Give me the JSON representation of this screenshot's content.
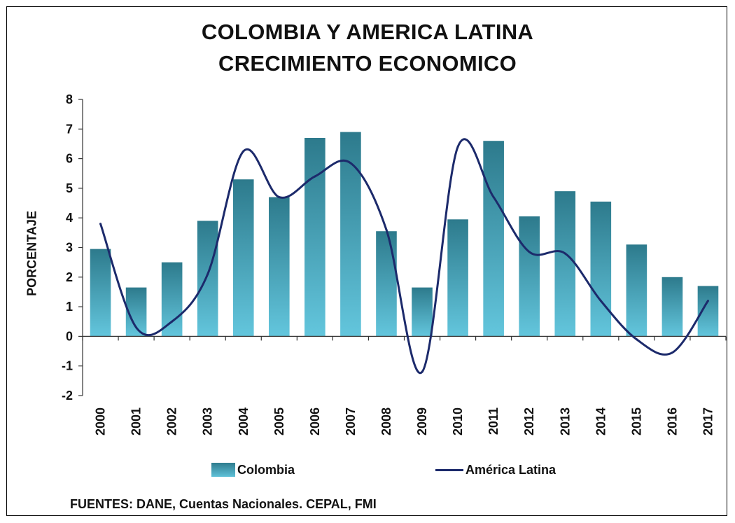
{
  "chart_data": {
    "type": "bar",
    "title": "COLOMBIA Y AMERICA LATINA",
    "subtitle": "CRECIMIENTO ECONOMICO",
    "ylabel": "PORCENTAJE",
    "xlabel": "",
    "ylim": [
      -2,
      8
    ],
    "yticks": [
      "8",
      "7",
      "6",
      "5",
      "4",
      "3",
      "2",
      "1",
      "0",
      "-1",
      "-2"
    ],
    "categories": [
      "2000",
      "2001",
      "2002",
      "2003",
      "2004",
      "2005",
      "2006",
      "2007",
      "2008",
      "2009",
      "2010",
      "2011",
      "2012",
      "2013",
      "2014",
      "2015",
      "2016",
      "2017"
    ],
    "series": [
      {
        "name": "Colombia",
        "kind": "bar",
        "color": "#2f7c8e",
        "values": [
          2.95,
          1.65,
          2.5,
          3.9,
          5.3,
          4.7,
          6.7,
          6.9,
          3.55,
          1.65,
          3.95,
          6.6,
          4.05,
          4.9,
          4.55,
          3.1,
          2.0,
          1.7
        ]
      },
      {
        "name": "América Latina",
        "kind": "line",
        "color": "#1c2a6b",
        "values": [
          3.8,
          0.3,
          0.5,
          2.1,
          6.25,
          4.7,
          5.4,
          5.85,
          3.6,
          -1.2,
          6.4,
          4.7,
          2.85,
          2.8,
          1.2,
          -0.1,
          -0.55,
          1.2
        ]
      }
    ],
    "grid": false,
    "legend_position": "bottom"
  },
  "legend": {
    "colombia": "Colombia",
    "latam": "América Latina"
  },
  "source": "FUENTES: DANE, Cuentas Nacionales. CEPAL, FMI"
}
